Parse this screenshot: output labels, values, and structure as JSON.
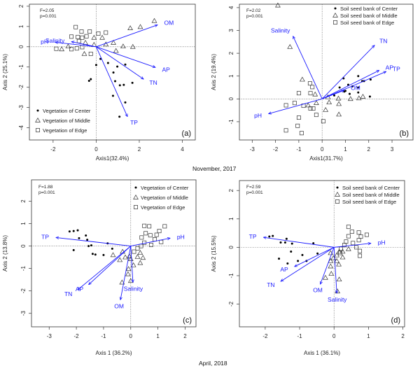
{
  "figure": {
    "caption_top": "November, 2017",
    "caption_bottom": "April, 2018"
  },
  "chart_data": [
    {
      "panel": "(a)",
      "type": "scatter",
      "title": "",
      "xlabel": "Axis1(32.4%)",
      "ylabel": "Axis 2 (25.1%)",
      "xlim": [
        -3.1,
        4.6
      ],
      "ylim": [
        -4.6,
        2.1
      ],
      "xticks": [
        -2,
        0,
        2,
        4
      ],
      "yticks": [
        2,
        1,
        0,
        -1,
        -2,
        -3,
        -4
      ],
      "stats": [
        "F=2.05",
        "p=0.001"
      ],
      "legend_position": "bottom-left",
      "legend": [
        {
          "name": "Vegetation of Center",
          "marker": "dot"
        },
        {
          "name": "Vegetation of Middle",
          "marker": "triangle"
        },
        {
          "name": "Vegetation of Edge",
          "marker": "square"
        }
      ],
      "series": [
        {
          "name": "Vegetation of Center",
          "marker": "dot",
          "points": [
            [
              0.0,
              -0.9
            ],
            [
              0.2,
              -0.6
            ],
            [
              0.55,
              -0.8
            ],
            [
              0.98,
              -0.98
            ],
            [
              1.35,
              -0.88
            ],
            [
              0.8,
              -1.27
            ],
            [
              0.88,
              -1.7
            ],
            [
              1.1,
              -1.9
            ],
            [
              1.28,
              -1.88
            ],
            [
              1.68,
              -1.78
            ],
            [
              -0.25,
              -1.6
            ],
            [
              -0.33,
              -1.68
            ],
            [
              0.78,
              -2.42
            ],
            [
              1.35,
              -2.75
            ],
            [
              1.08,
              -3.45
            ]
          ]
        },
        {
          "name": "Vegetation of Middle",
          "marker": "triangle",
          "points": [
            [
              2.7,
              1.28
            ],
            [
              2.05,
              0.98
            ],
            [
              1.58,
              0.92
            ],
            [
              -0.1,
              0.45
            ],
            [
              0.28,
              0.45
            ],
            [
              -0.5,
              0.2
            ],
            [
              -0.1,
              0.1
            ],
            [
              0.45,
              0.12
            ],
            [
              0.8,
              0.2
            ],
            [
              1.25,
              0.02
            ],
            [
              1.7,
              0.0
            ],
            [
              0.92,
              -0.2
            ],
            [
              -1.3,
              0.02
            ],
            [
              -1.6,
              -0.12
            ],
            [
              -0.55,
              -0.35
            ]
          ]
        },
        {
          "name": "Vegetation of Edge",
          "marker": "square",
          "points": [
            [
              -0.95,
              0.97
            ],
            [
              -0.68,
              0.75
            ],
            [
              -0.3,
              0.75
            ],
            [
              0.1,
              0.65
            ],
            [
              0.45,
              0.7
            ],
            [
              -1.15,
              0.5
            ],
            [
              -0.85,
              0.48
            ],
            [
              -0.65,
              0.45
            ],
            [
              -0.45,
              0.52
            ],
            [
              -0.8,
              0.28
            ],
            [
              -1.85,
              -0.1
            ],
            [
              -1.15,
              -0.12
            ],
            [
              -0.9,
              -0.08
            ],
            [
              -0.65,
              -0.02
            ],
            [
              -0.25,
              -0.35
            ]
          ]
        }
      ],
      "vectors": [
        {
          "label": "OM",
          "x": 2.85,
          "y": 1.08
        },
        {
          "label": "AP",
          "x": 2.75,
          "y": -1.02
        },
        {
          "label": "TN",
          "x": 2.2,
          "y": -1.6
        },
        {
          "label": "TP",
          "x": 1.45,
          "y": -3.45
        },
        {
          "label": "Salinity",
          "x": -1.15,
          "y": 0.25
        },
        {
          "label": "pH",
          "x": -1.9,
          "y": 0.22
        }
      ]
    },
    {
      "panel": "(b)",
      "type": "scatter",
      "title": "",
      "xlabel": "Axis1(31.7%)",
      "ylabel": "Axis 2 (19.4%)",
      "xlim": [
        -3.55,
        3.9
      ],
      "ylim": [
        -1.8,
        4.15
      ],
      "xticks": [
        -3,
        -2,
        -1,
        0,
        1,
        2,
        3
      ],
      "yticks": [
        4,
        3,
        2,
        1,
        0,
        -1
      ],
      "stats": [
        "F=2.02",
        "p=0.001"
      ],
      "legend_position": "top-right",
      "legend": [
        {
          "name": "Soil seed bank of Center",
          "marker": "dot"
        },
        {
          "name": "Soil seed bank of Middle",
          "marker": "triangle"
        },
        {
          "name": "Soil seed bank of Edge",
          "marker": "square"
        }
      ],
      "series": [
        {
          "name": "Soil seed bank of Center",
          "marker": "dot",
          "points": [
            [
              0.92,
              0.9
            ],
            [
              1.55,
              1.0
            ],
            [
              1.8,
              0.78
            ],
            [
              2.08,
              0.85
            ],
            [
              1.72,
              0.78
            ],
            [
              0.75,
              0.5
            ],
            [
              1.12,
              0.62
            ],
            [
              1.3,
              0.55
            ],
            [
              1.55,
              0.5
            ],
            [
              1.0,
              0.35
            ],
            [
              0.95,
              0.32
            ],
            [
              0.52,
              0.15
            ],
            [
              1.18,
              0.22
            ],
            [
              1.55,
              0.28
            ],
            [
              2.05,
              0.1
            ]
          ]
        },
        {
          "name": "Soil seed bank of Middle",
          "marker": "triangle",
          "points": [
            [
              -1.9,
              4.1
            ],
            [
              -1.38,
              2.28
            ],
            [
              -0.85,
              0.85
            ],
            [
              -0.3,
              0.2
            ],
            [
              -0.25,
              -0.18
            ],
            [
              -0.6,
              -0.28
            ],
            [
              0.25,
              0.08
            ],
            [
              0.3,
              -0.15
            ],
            [
              0.7,
              0.02
            ],
            [
              0.72,
              -0.22
            ],
            [
              1.22,
              0.0
            ],
            [
              1.58,
              0.03
            ],
            [
              1.75,
              0.1
            ],
            [
              0.15,
              -0.48
            ],
            [
              0.72,
              -0.68
            ]
          ]
        },
        {
          "name": "Soil seed bank of Edge",
          "marker": "square",
          "points": [
            [
              -0.52,
              0.68
            ],
            [
              -0.42,
              0.52
            ],
            [
              -1.0,
              0.25
            ],
            [
              -0.5,
              0.25
            ],
            [
              -1.18,
              -0.18
            ],
            [
              -1.55,
              -0.28
            ],
            [
              -0.8,
              -0.3
            ],
            [
              -0.5,
              -0.42
            ],
            [
              -0.38,
              -0.42
            ],
            [
              -0.25,
              -0.7
            ],
            [
              -1.0,
              -0.82
            ],
            [
              0.05,
              -0.98
            ],
            [
              -1.05,
              -1.18
            ],
            [
              -1.55,
              -1.38
            ],
            [
              -0.88,
              -1.5
            ]
          ]
        }
      ],
      "vectors": [
        {
          "label": "Salinity",
          "x": -1.25,
          "y": 2.75
        },
        {
          "label": "TN",
          "x": 2.25,
          "y": 2.35
        },
        {
          "label": "AP",
          "x": 2.45,
          "y": 1.25
        },
        {
          "label": "TP",
          "x": 2.75,
          "y": 1.2
        },
        {
          "label": "OM",
          "x": 0.95,
          "y": 0.38
        },
        {
          "label": "pH",
          "x": -2.3,
          "y": -0.65
        }
      ]
    },
    {
      "panel": "(c)",
      "type": "scatter",
      "title": "",
      "xlabel": "Axis 1 (36.2%)",
      "ylabel": "Axis 2 (13.8%)",
      "xlim": [
        -3.65,
        2.4
      ],
      "ylim": [
        -3.6,
        2.95
      ],
      "xticks": [
        -3,
        -2,
        -1,
        0,
        1,
        2
      ],
      "yticks": [
        2,
        1,
        0,
        -1,
        -2,
        -3
      ],
      "stats": [
        "F=1.88",
        "p=0.001"
      ],
      "legend_position": "top-right",
      "legend": [
        {
          "name": "Vegetation of Center",
          "marker": "dot"
        },
        {
          "name": "Vegetation of Middle",
          "marker": "triangle"
        },
        {
          "name": "Vegetation of Edge",
          "marker": "square"
        }
      ],
      "series": [
        {
          "name": "Vegetation of Center",
          "marker": "dot",
          "points": [
            [
              -2.25,
              0.65
            ],
            [
              -2.1,
              0.67
            ],
            [
              -1.95,
              0.7
            ],
            [
              -1.65,
              0.47
            ],
            [
              -1.9,
              0.35
            ],
            [
              -1.6,
              0.28
            ],
            [
              -1.55,
              0.0
            ],
            [
              -1.45,
              0.03
            ],
            [
              -2.1,
              -0.18
            ],
            [
              -1.4,
              -0.35
            ],
            [
              -1.3,
              -0.38
            ],
            [
              -1.0,
              -0.4
            ],
            [
              -0.85,
              0.12
            ],
            [
              -0.68,
              -0.12
            ]
          ]
        },
        {
          "name": "Vegetation of Middle",
          "marker": "triangle",
          "points": [
            [
              -0.65,
              -0.4
            ],
            [
              -0.3,
              -0.25
            ],
            [
              -0.2,
              -0.5
            ],
            [
              -0.05,
              -0.45
            ],
            [
              -0.4,
              -0.62
            ],
            [
              0.0,
              -0.58
            ],
            [
              0.1,
              -0.85
            ],
            [
              0.25,
              -0.48
            ],
            [
              0.35,
              -0.3
            ],
            [
              0.45,
              -0.52
            ],
            [
              0.35,
              -0.75
            ],
            [
              -0.08,
              -1.02
            ],
            [
              -0.1,
              -1.25
            ],
            [
              -0.32,
              -1.62
            ],
            [
              0.0,
              -1.55
            ]
          ]
        },
        {
          "name": "Vegetation of Edge",
          "marker": "square",
          "points": [
            [
              0.5,
              0.9
            ],
            [
              0.68,
              0.88
            ],
            [
              0.55,
              0.57
            ],
            [
              0.72,
              0.48
            ],
            [
              0.95,
              0.5
            ],
            [
              1.05,
              0.67
            ],
            [
              1.25,
              0.88
            ],
            [
              0.4,
              0.38
            ],
            [
              0.88,
              0.3
            ],
            [
              1.12,
              0.18
            ],
            [
              0.5,
              0.15
            ],
            [
              0.75,
              0.05
            ],
            [
              0.38,
              0.0
            ],
            [
              0.25,
              -0.1
            ],
            [
              0.12,
              -0.25
            ]
          ]
        }
      ],
      "vectors": [
        {
          "label": "TP",
          "x": -2.75,
          "y": 0.38
        },
        {
          "label": "pH",
          "x": 1.45,
          "y": 0.35
        },
        {
          "label": "TN",
          "x": -1.95,
          "y": -1.95
        },
        {
          "label": "AP",
          "x": -1.55,
          "y": -1.72
        },
        {
          "label": "OM",
          "x": -0.38,
          "y": -2.4
        },
        {
          "label": "Salinity",
          "x": 0.08,
          "y": -1.62
        }
      ]
    },
    {
      "panel": "(d)",
      "type": "scatter",
      "title": "",
      "xlabel": "Axis 1 (36.1%)",
      "ylabel": "Axis 2 (15.5%)",
      "xlim": [
        -2.75,
        2.05
      ],
      "ylim": [
        -2.8,
        2.35
      ],
      "xticks": [
        -2,
        -1,
        0,
        1,
        2
      ],
      "yticks": [
        2,
        1,
        0,
        -1,
        -2
      ],
      "stats": [
        "F=2.59",
        "p=0.001"
      ],
      "legend_position": "top-right",
      "legend": [
        {
          "name": "Soil seed bank of Center",
          "marker": "dot"
        },
        {
          "name": "Soil seed bank of Middle",
          "marker": "triangle"
        },
        {
          "name": "Soil seed bank of Edge",
          "marker": "square"
        }
      ],
      "series": [
        {
          "name": "Soil seed bank of Center",
          "marker": "dot",
          "points": [
            [
              -1.88,
              0.38
            ],
            [
              -1.78,
              0.4
            ],
            [
              -1.38,
              0.3
            ],
            [
              -1.55,
              0.17
            ],
            [
              -1.42,
              0.17
            ],
            [
              -1.22,
              0.13
            ],
            [
              -0.6,
              0.14
            ],
            [
              -1.25,
              -0.15
            ],
            [
              -0.48,
              -0.22
            ],
            [
              -0.92,
              -0.27
            ],
            [
              -1.6,
              -0.4
            ],
            [
              -1.05,
              -0.48
            ],
            [
              -0.8,
              -0.48
            ],
            [
              -1.35,
              -0.57
            ]
          ]
        },
        {
          "name": "Soil seed bank of Middle",
          "marker": "triangle",
          "points": [
            [
              0.42,
              -0.06
            ],
            [
              0.25,
              -0.15
            ],
            [
              0.15,
              -0.15
            ],
            [
              -0.1,
              -0.2
            ],
            [
              0.08,
              -0.28
            ],
            [
              0.25,
              -0.35
            ],
            [
              -0.02,
              -0.38
            ],
            [
              -0.1,
              -0.48
            ],
            [
              0.08,
              -0.48
            ],
            [
              0.14,
              -0.6
            ],
            [
              -0.1,
              -0.67
            ],
            [
              -0.08,
              -0.93
            ],
            [
              -0.25,
              -1.07
            ],
            [
              0.15,
              -1.13
            ],
            [
              0.1,
              -1.55
            ]
          ]
        },
        {
          "name": "Soil seed bank of Edge",
          "marker": "square",
          "points": [
            [
              0.42,
              0.72
            ],
            [
              0.52,
              0.55
            ],
            [
              0.72,
              0.52
            ],
            [
              0.42,
              0.39
            ],
            [
              0.78,
              0.38
            ],
            [
              0.95,
              0.44
            ],
            [
              0.72,
              0.25
            ],
            [
              0.35,
              0.2
            ],
            [
              0.55,
              0.15
            ],
            [
              0.3,
              0.08
            ],
            [
              0.65,
              0.0
            ],
            [
              0.2,
              -0.05
            ],
            [
              0.75,
              -0.13
            ],
            [
              0.18,
              -0.2
            ],
            [
              0.75,
              -0.3
            ]
          ]
        }
      ],
      "vectors": [
        {
          "label": "TP",
          "x": -2.05,
          "y": 0.35
        },
        {
          "label": "pH",
          "x": 1.07,
          "y": 0.14
        },
        {
          "label": "AP",
          "x": -1.15,
          "y": -0.68
        },
        {
          "label": "TN",
          "x": -1.55,
          "y": -1.2
        },
        {
          "label": "OM",
          "x": -0.4,
          "y": -1.3
        },
        {
          "label": "Salinity",
          "x": 0.08,
          "y": -1.62
        }
      ]
    }
  ]
}
